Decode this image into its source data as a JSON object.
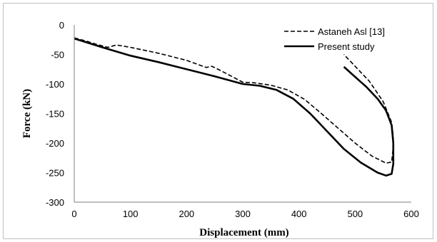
{
  "chart_data": {
    "type": "line",
    "title": "",
    "xlabel": "Displacement (mm)",
    "ylabel": "Force (kN)",
    "xlim": [
      0,
      600
    ],
    "ylim": [
      -300,
      0
    ],
    "xticks": [
      0,
      100,
      200,
      300,
      400,
      500,
      600
    ],
    "yticks": [
      0,
      -50,
      -100,
      -150,
      -200,
      -250,
      -300
    ],
    "grid": false,
    "legend_position": "top-right",
    "series": [
      {
        "name": "Astaneh Asl [13]",
        "style": "dashed",
        "color": "#000000",
        "x": [
          0,
          20,
          40,
          60,
          75,
          100,
          150,
          200,
          235,
          245,
          260,
          280,
          300,
          320,
          350,
          380,
          410,
          440,
          470,
          500,
          530,
          555,
          565,
          567,
          568,
          565,
          550,
          525,
          500,
          480
        ],
        "y": [
          -22,
          -27,
          -33,
          -38,
          -34,
          -38,
          -48,
          -60,
          -72,
          -70,
          -77,
          -87,
          -97,
          -98,
          -102,
          -110,
          -126,
          -150,
          -175,
          -200,
          -222,
          -234,
          -232,
          -215,
          -190,
          -165,
          -130,
          -95,
          -70,
          -50
        ]
      },
      {
        "name": "Present study",
        "style": "solid",
        "color": "#000000",
        "x": [
          0,
          50,
          100,
          150,
          200,
          250,
          300,
          330,
          360,
          390,
          420,
          450,
          480,
          510,
          540,
          555,
          565,
          568,
          568,
          565,
          555,
          540,
          520,
          500,
          480
        ],
        "y": [
          -23,
          -38,
          -52,
          -63,
          -75,
          -87,
          -100,
          -103,
          -110,
          -125,
          -150,
          -180,
          -210,
          -233,
          -250,
          -255,
          -252,
          -235,
          -200,
          -170,
          -145,
          -125,
          -105,
          -88,
          -71
        ]
      }
    ]
  }
}
